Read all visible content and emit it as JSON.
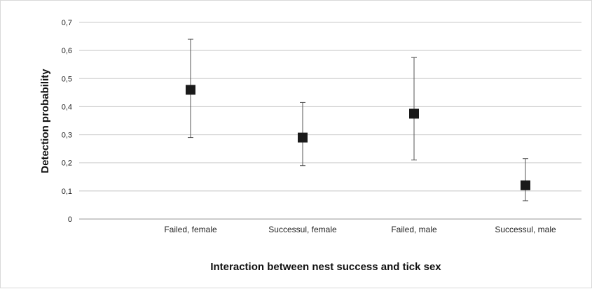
{
  "chart_data": {
    "type": "scatter",
    "title": "",
    "xlabel": "Interaction between nest success and tick sex",
    "ylabel": "Detection probability",
    "ylim": [
      0,
      0.7
    ],
    "yticks": [
      "0",
      "0,1",
      "0,2",
      "0,3",
      "0,4",
      "0,5",
      "0,6",
      "0,7"
    ],
    "grid": true,
    "categories": [
      "Failed, female",
      "Successul, female",
      "Failed, male",
      "Successul, male"
    ],
    "series": [
      {
        "values": [
          0.46,
          0.29,
          0.375,
          0.12
        ],
        "error_low": [
          0.29,
          0.19,
          0.21,
          0.065
        ],
        "error_high": [
          0.64,
          0.415,
          0.575,
          0.215
        ]
      }
    ],
    "colors": {
      "marker": "#1a1a1a",
      "gridline": "#c8c8c8",
      "error_bar": "#555555"
    }
  }
}
